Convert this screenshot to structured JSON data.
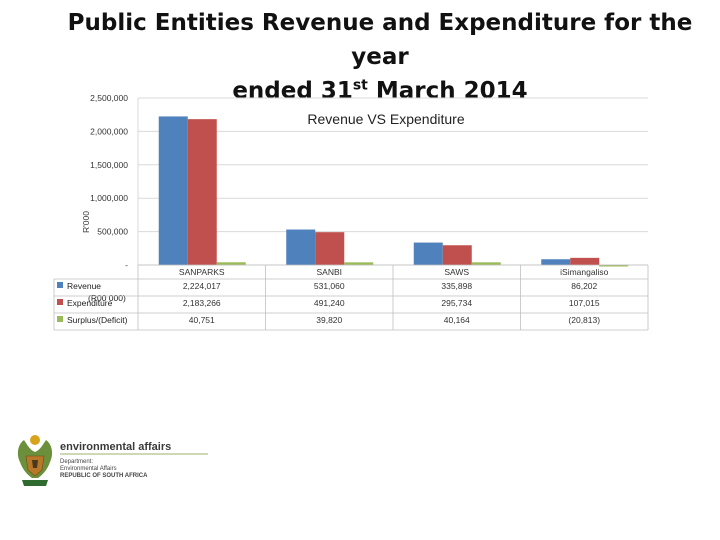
{
  "slide": {
    "title_line1": "Public Entities Revenue and Expenditure for the year",
    "title_line2_pre": "ended 31",
    "title_line2_sup": "st",
    "title_line2_post": " March 2014"
  },
  "colors": {
    "revenue": "#4F81BD",
    "expenditure": "#C0504D",
    "surplus": "#9BBB59",
    "grid": "#D9D9D9",
    "table_line": "#BFBFBF"
  },
  "chart_data": {
    "type": "bar",
    "title": "Revenue VS Expenditure",
    "ylabel": "R'000",
    "unit_note": "(R00 000)",
    "ylim": [
      0,
      2500000
    ],
    "yticks": [
      "-",
      "500,000",
      "1,000,000",
      "1,500,000",
      "2,000,000",
      "2,500,000"
    ],
    "grid": true,
    "legend_position": "data-table-left",
    "categories": [
      "SANPARKS",
      "SANBI",
      "SAWS",
      "iSimangaliso"
    ],
    "series": [
      {
        "name": "Revenue",
        "color": "#4F81BD",
        "values": [
          2224017,
          531060,
          335898,
          86202
        ],
        "labels": [
          "2,224,017",
          "531,060",
          "335,898",
          "86,202"
        ]
      },
      {
        "name": "Expenditure",
        "color": "#C0504D",
        "values": [
          2183266,
          491240,
          295734,
          107015
        ],
        "labels": [
          "2,183,266",
          "491,240",
          "295,734",
          "107,015"
        ]
      },
      {
        "name": "Surplus/(Deficit)",
        "color": "#9BBB59",
        "values": [
          40751,
          39820,
          40164,
          -20813
        ],
        "labels": [
          "40,751",
          "39,820",
          "40,164",
          "(20,813)"
        ]
      }
    ]
  },
  "logo": {
    "name": "environmental affairs",
    "line1": "Department:",
    "line2": "Environmental Affairs",
    "line3": "REPUBLIC OF SOUTH AFRICA"
  }
}
